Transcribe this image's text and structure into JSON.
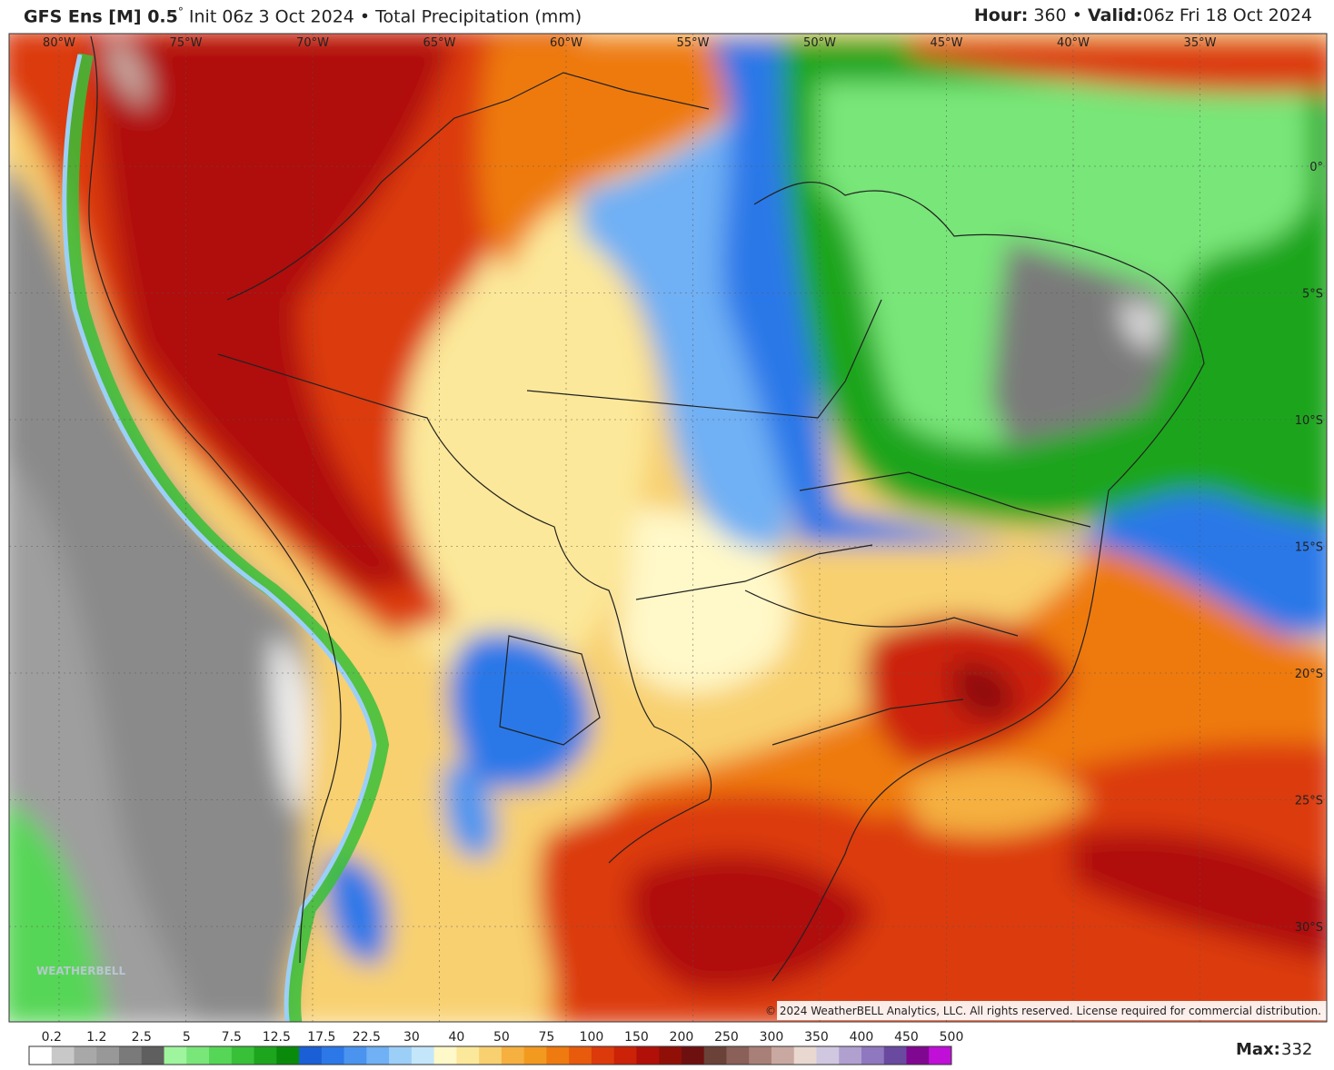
{
  "header": {
    "model": "GFS Ens [M] 0.5",
    "degree": "°",
    "description": "Init 06z 3 Oct 2024 • Total Precipitation (mm)",
    "hour_label": "Hour:",
    "hour": 360,
    "separator": "•",
    "valid_label": "Valid:",
    "valid": "06z Fri 18 Oct 2024"
  },
  "map": {
    "longitudes": [
      "80°W",
      "75°W",
      "70°W",
      "65°W",
      "60°W",
      "55°W",
      "50°W",
      "45°W",
      "40°W",
      "35°W"
    ],
    "latitudes": [
      "0°",
      "5°S",
      "10°S",
      "15°S",
      "20°S",
      "25°S",
      "30°S"
    ],
    "copyright": "© 2024 WeatherBELL Analytics, LLC. All rights reserved. License required for commercial distribution.",
    "watermark": "WEATHERBELL"
  },
  "colorbar": {
    "labels": [
      0.2,
      1.2,
      2.5,
      5,
      7.5,
      12.5,
      17.5,
      22.5,
      30,
      40,
      50,
      75,
      100,
      150,
      200,
      250,
      300,
      350,
      400,
      450,
      500
    ],
    "colors": [
      "#ffffff",
      "#c8c8c8",
      "#a8a8a8",
      "#989898",
      "#7a7a7a",
      "#5f5f5f",
      "#9ef59e",
      "#78e678",
      "#56d656",
      "#38c038",
      "#1ea51e",
      "#0a8a0a",
      "#1a5fd6",
      "#2c78e8",
      "#4a94f0",
      "#70b0f4",
      "#9ccff8",
      "#c4e6fa",
      "#fff8c8",
      "#fce89a",
      "#f8d070",
      "#f5b040",
      "#f29a20",
      "#ee7a10",
      "#e85a0c",
      "#dc3a0a",
      "#cc2208",
      "#b01008",
      "#901008",
      "#6e1010",
      "#6a4238",
      "#8a6058",
      "#a88078",
      "#c8a8a0",
      "#e8d8d0",
      "#d0c8e0",
      "#b0a0d0",
      "#9078c0",
      "#6a4aa0",
      "#800890",
      "#c010d8"
    ]
  },
  "footer": {
    "max_label": "Max:",
    "max": 332
  }
}
